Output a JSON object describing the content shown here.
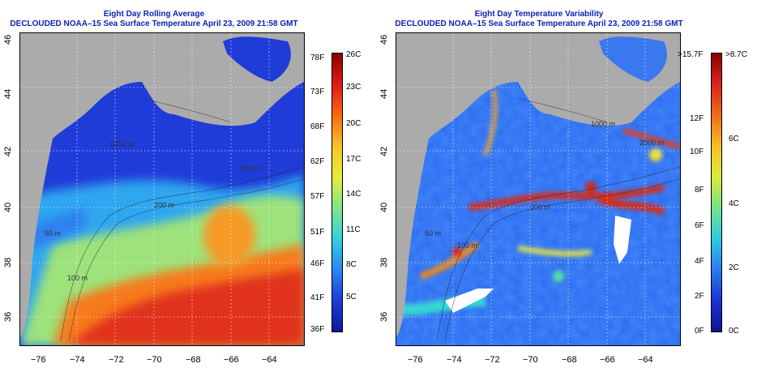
{
  "left_panel": {
    "title": "Eight Day Rolling Average",
    "subtitle": "DECLOUDED NOAA–15 Sea Surface Temperature April 23, 2009 21:58 GMT",
    "lon_ticks": [
      "−76",
      "−74",
      "−72",
      "−70",
      "−68",
      "−66",
      "−64"
    ],
    "lat_ticks": [
      "36",
      "38",
      "40",
      "42",
      "44",
      "46"
    ],
    "contour_labels": [
      "200 m",
      "1000 m",
      "2000 m",
      "100 m",
      "50 m"
    ],
    "colorbar_f": [
      "78F",
      "73F",
      "68F",
      "62F",
      "57F",
      "51F",
      "46F",
      "41F",
      "36F"
    ],
    "colorbar_c": [
      "26C",
      "23C",
      "20C",
      "17C",
      "14C",
      "11C",
      "8C",
      "5C"
    ]
  },
  "right_panel": {
    "title": "Eight Day Temperature Variability",
    "subtitle": "DECLOUDED NOAA–15 Sea Surface Temperature April 23, 2009 21:58 GMT",
    "lon_ticks": [
      "−76",
      "−74",
      "−72",
      "−70",
      "−68",
      "−66",
      "−64"
    ],
    "lat_ticks": [
      "36",
      "38",
      "40",
      "42",
      "44",
      "46"
    ],
    "contour_labels": [
      "200 m",
      "2000 m",
      "1000 m",
      "100 m",
      "50 m"
    ],
    "colorbar_f": [
      ">15.7F",
      "12F",
      "10F",
      "8F",
      "6F",
      "4F",
      "2F",
      "0F"
    ],
    "colorbar_c": [
      ">8.7C",
      "6C",
      "4C",
      "2C",
      "0C"
    ]
  },
  "colors": {
    "title_blue": "#0a23b4",
    "land_gray": "#ababab"
  }
}
